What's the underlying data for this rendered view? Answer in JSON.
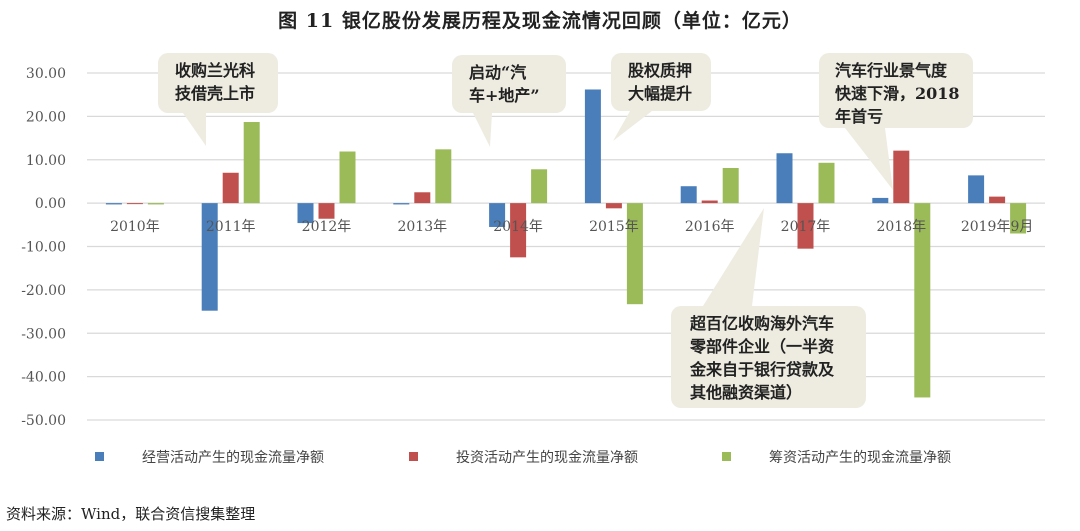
{
  "title": "图 11   银亿股份发展历程及现金流情况回顾（单位：亿元）",
  "source": "资料来源：Wind，联合资信搜集整理",
  "chart_data": {
    "type": "bar",
    "title": "图 11   银亿股份发展历程及现金流情况回顾（单位：亿元）",
    "categories": [
      "2010年",
      "2011年",
      "2012年",
      "2013年",
      "2014年",
      "2015年",
      "2016年",
      "2017年",
      "2018年",
      "2019年9月"
    ],
    "series": [
      {
        "name": "经营活动产生的现金流量净额",
        "color": "#4a7ebb",
        "values": [
          -0.3,
          -24.8,
          -4.6,
          -0.3,
          -5.5,
          26.2,
          3.9,
          11.5,
          1.2,
          6.4
        ]
      },
      {
        "name": "投资活动产生的现金流量净额",
        "color": "#c0504d",
        "values": [
          0,
          7.0,
          -3.6,
          2.5,
          -12.5,
          -1.2,
          0.6,
          -10.5,
          12.1,
          1.5
        ]
      },
      {
        "name": "筹资活动产生的现金流量净额",
        "color": "#9bbb59",
        "values": [
          -0.3,
          18.7,
          11.9,
          12.4,
          7.8,
          -23.3,
          8.1,
          9.3,
          -44.8,
          -7.0
        ]
      }
    ],
    "ylim": [
      -50,
      30
    ],
    "yticks": [
      "30.00",
      "20.00",
      "10.00",
      "0.00",
      "-10.00",
      "-20.00",
      "-30.00",
      "-40.00",
      "-50.00"
    ],
    "grid": true,
    "legend": "bottom",
    "annotations": [
      {
        "lines": [
          "收购兰光科",
          "技借壳上市"
        ],
        "category": "2011年"
      },
      {
        "lines": [
          "启动“汽",
          "车+地产”"
        ],
        "category": "2014年"
      },
      {
        "lines": [
          "股权质押",
          "大幅提升"
        ],
        "category": "2015年"
      },
      {
        "lines": [
          "超百亿收购海外汽车",
          "零部件企业（一半资",
          "金来自于银行贷款及",
          "其他融资渠道）"
        ],
        "category": "2016年"
      },
      {
        "lines": [
          "汽车行业景气度",
          "快速下滑，2018",
          "年首亏"
        ],
        "category": "2018年"
      }
    ]
  }
}
